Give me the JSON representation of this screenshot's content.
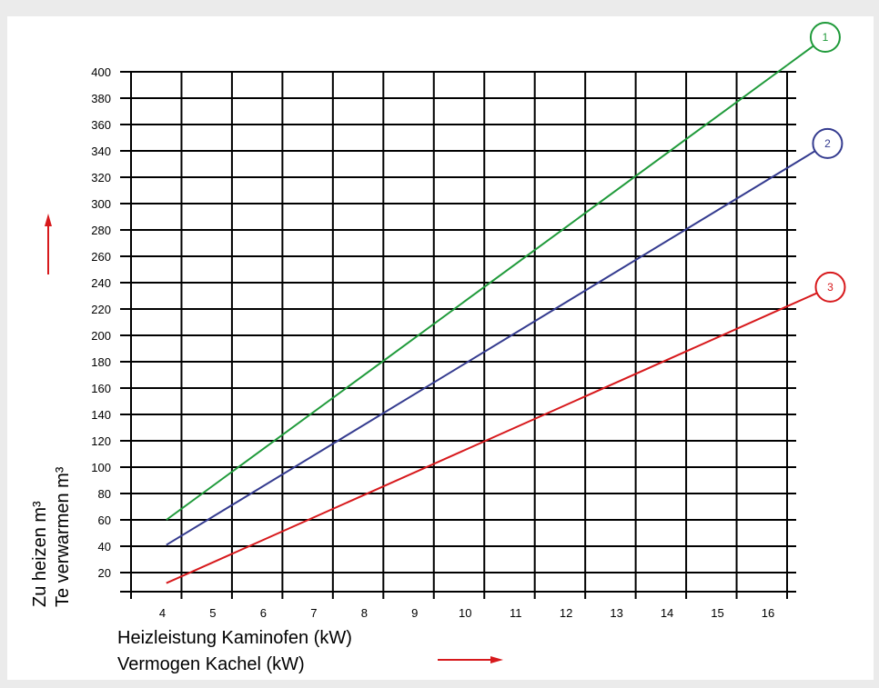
{
  "chart_data": {
    "type": "line",
    "x_ticks": [
      "4",
      "5",
      "6",
      "7",
      "8",
      "9",
      "10",
      "11",
      "12",
      "13",
      "14",
      "15",
      "16"
    ],
    "y_ticks": [
      "20",
      "40",
      "60",
      "80",
      "100",
      "120",
      "140",
      "160",
      "180",
      "200",
      "220",
      "240",
      "260",
      "280",
      "300",
      "320",
      "340",
      "360",
      "380",
      "400"
    ],
    "xlim": [
      3,
      16
    ],
    "ylim": [
      0,
      400
    ],
    "grid": true,
    "xlabel_lines": [
      "Heizleistung Kaminofen (kW)",
      "Vermogen Kachel (kW)"
    ],
    "ylabel_lines": [
      "Zu heizen m³",
      "Te verwarmen m³"
    ],
    "series": [
      {
        "marker": "1",
        "color": "#1f9a3a",
        "x": [
          3.7,
          16.0
        ],
        "y": [
          60,
          405
        ]
      },
      {
        "marker": "2",
        "color": "#343b8f",
        "x": [
          3.7,
          16.0
        ],
        "y": [
          41,
          327
        ]
      },
      {
        "marker": "3",
        "color": "#d7191c",
        "x": [
          3.7,
          16.0
        ],
        "y": [
          12,
          222
        ]
      }
    ],
    "arrow_color": "#d7191c"
  }
}
